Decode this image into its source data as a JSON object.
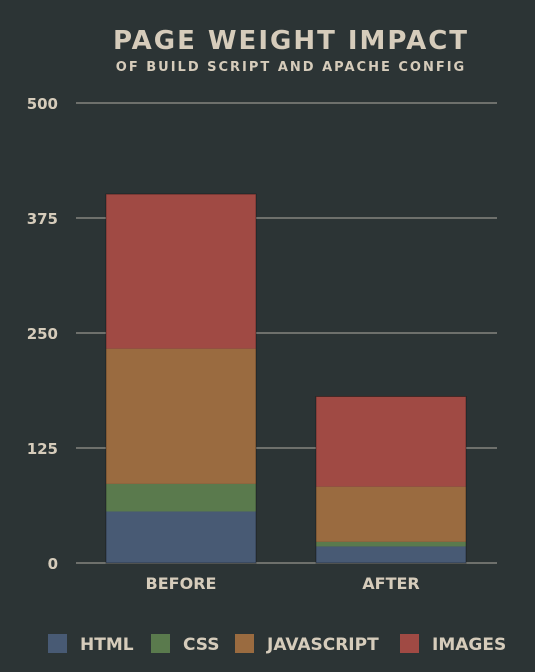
{
  "chart_data": {
    "type": "bar",
    "stacked": true,
    "title": "PAGE WEIGHT IMPACT",
    "subtitle": "OF BUILD SCRIPT AND APACHE CONFIG",
    "categories": [
      "BEFORE",
      "AFTER"
    ],
    "series": [
      {
        "name": "HTML",
        "color": "#485a74",
        "values": [
          56,
          18
        ]
      },
      {
        "name": "CSS",
        "color": "#5a7a4d",
        "values": [
          30,
          5
        ]
      },
      {
        "name": "JAVASCRIPT",
        "color": "#9a6b40",
        "values": [
          147,
          60
        ]
      },
      {
        "name": "IMAGES",
        "color": "#a04a44",
        "values": [
          168,
          98
        ]
      }
    ],
    "ylim": [
      0,
      500
    ],
    "yticks": [
      "0",
      "125",
      "250",
      "375",
      "500"
    ],
    "grid": true,
    "legend_position": "bottom"
  }
}
